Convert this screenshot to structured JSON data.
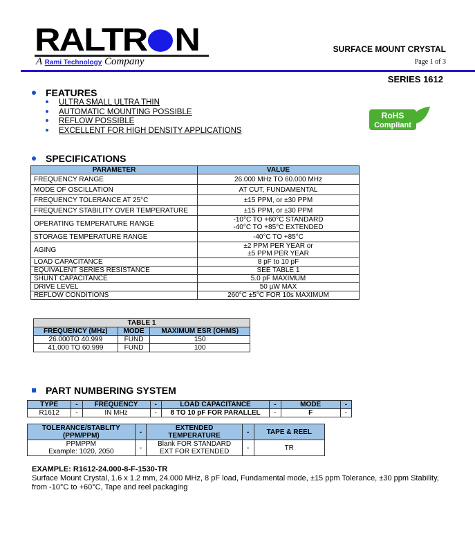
{
  "header": {
    "logo_text": "RALTRON",
    "tagline_brand": "Rami Technology",
    "tagline_prefix": "A",
    "tagline_suffix": "Company",
    "doc_title": "SURFACE MOUNT CRYSTAL",
    "page": "Page 1 of 3",
    "series": "SERIES 1612",
    "rule_color": "#2a16c8"
  },
  "features": {
    "heading": "FEATURES",
    "items": [
      "ULTRA SMALL ULTRA THIN",
      "AUTOMATIC MOUNTING POSSIBLE",
      "REFLOW POSSIBLE",
      "EXCELLENT FOR HIGH DENSITY APPLICATIONS"
    ],
    "badge": {
      "line1": "RoHS",
      "line2": "Compliant",
      "icon": "leaf-icon",
      "color": "#4caf32"
    }
  },
  "specifications": {
    "heading": "SPECIFICATIONS",
    "columns": [
      "PARAMETER",
      "VALUE"
    ],
    "rows": [
      [
        "FREQUENCY RANGE",
        "26.000 MHz TO 60.000 MHz"
      ],
      [
        "MODE OF OSCILLATION",
        "AT CUT, FUNDAMENTAL"
      ],
      [
        "FREQUENCY TOLERANCE AT 25°C",
        "±15 PPM, or ±30 PPM"
      ],
      [
        "FREQUENCY STABILITY OVER TEMPERATURE",
        "±15 PPM, or ±30 PPM"
      ],
      [
        "OPERATING TEMPERATURE RANGE",
        "-10°C TO +60°C STANDARD\n-40°C TO +85°C EXTENDED"
      ],
      [
        "STORAGE TEMPERATURE RANGE",
        "-40°C TO +85°C"
      ],
      [
        "AGING",
        "±2 PPM PER YEAR or\n±5 PPM PER YEAR"
      ],
      [
        "LOAD CAPACITANCE",
        "8 pF to 10 pF"
      ],
      [
        "EQUIVALENT SERIES RESISTANCE",
        "SEE TABLE 1"
      ],
      [
        "SHUNT CAPACITANCE",
        "5.0 pF MAXIMUM"
      ],
      [
        "DRIVE LEVEL",
        "50 µW MAX"
      ],
      [
        "REFLOW CONDITIONS",
        "260°C ±5°C FOR 10s MAXIMUM"
      ]
    ]
  },
  "table1": {
    "caption": "TABLE 1",
    "columns": [
      "FREQUENCY (MHz)",
      "MODE",
      "MAXIMUM ESR (OHMS)"
    ],
    "rows": [
      [
        "26.000TO 40.999",
        "FUND",
        "150"
      ],
      [
        "41.000 TO 60.999",
        "FUND",
        "100"
      ]
    ]
  },
  "part_numbering": {
    "heading": "PART NUMBERING SYSTEM",
    "table_a": {
      "columns": [
        "TYPE",
        "-",
        "FREQUENCY",
        "-",
        "LOAD CAPACITANCE",
        "-",
        "MODE",
        "-"
      ],
      "row": [
        "R1612",
        "-",
        "IN MHz",
        "-",
        "8 TO 10 pF FOR PARALLEL",
        "-",
        "F",
        "-"
      ]
    },
    "table_b": {
      "columns": [
        "TOLERANCE/STABLITY\n(PPM/PPM)",
        "-",
        "EXTENDED\nTEMPERATURE",
        "-",
        "TAPE & REEL"
      ],
      "row": [
        "PPMPPM\nExample: 1020, 2050",
        "-",
        "Blank FOR STANDARD\nEXT FOR EXTENDED",
        "-",
        "TR"
      ]
    }
  },
  "example": {
    "label": "EXAMPLE: R1612-24.000-8-F-1530-TR",
    "description": "Surface Mount Crystal, 1.6 x 1.2 mm, 24.000 MHz, 8 pF load, Fundamental mode, ±15 ppm Tolerance, ±30 ppm Stability, from -10°C to +60°C, Tape and reel packaging"
  }
}
